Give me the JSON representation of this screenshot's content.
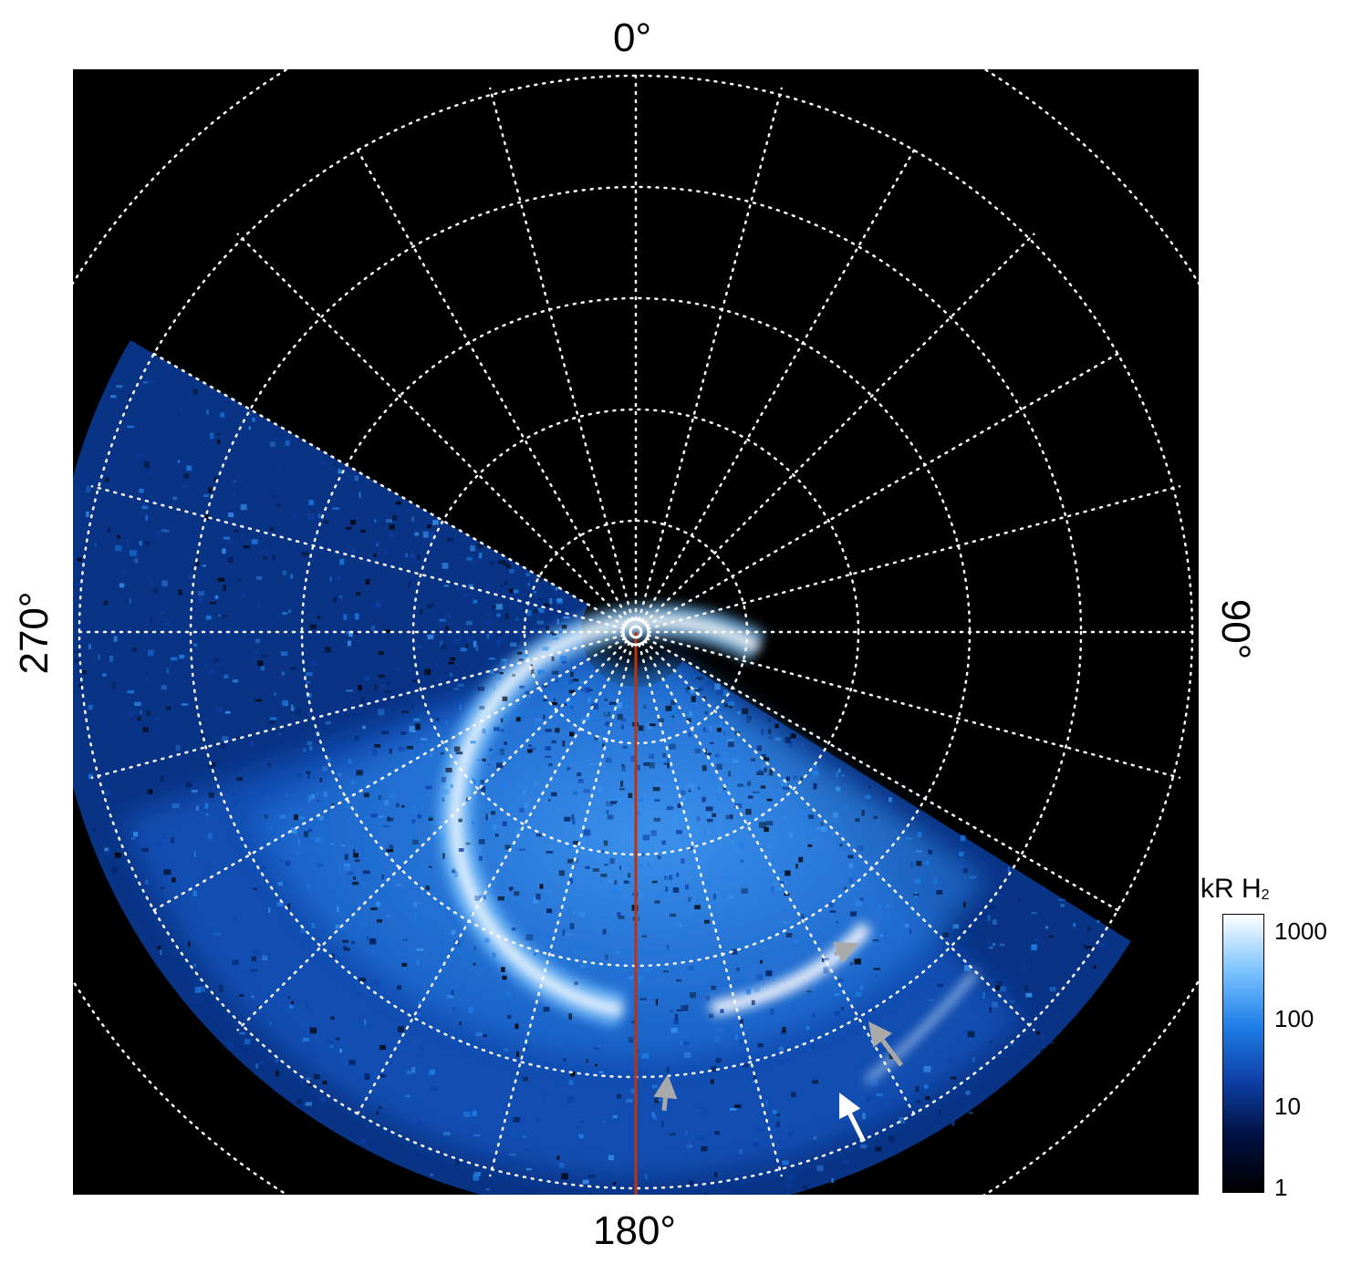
{
  "figure": {
    "angle_labels": {
      "top": "0°",
      "bottom": "180°",
      "left": "270°",
      "right": "90°"
    },
    "colorbar": {
      "title": "kR H",
      "title_subscript": "2",
      "scale": "log",
      "range": [
        1,
        1000
      ],
      "tick_labels": [
        "1000",
        "100",
        "10",
        "1"
      ],
      "colors": [
        "#000000",
        "#001040",
        "#0d3fa6",
        "#1f7fe8",
        "#7cc4ff",
        "#ffffff"
      ]
    },
    "grid": {
      "style": "dotted",
      "color": "#ffffff",
      "meridian_step_deg": 15,
      "ring_count": 5
    },
    "reference_line_color": "#c2320a",
    "arrow_colors": {
      "gray": "#a9a9a9",
      "white": "#ffffff"
    }
  }
}
